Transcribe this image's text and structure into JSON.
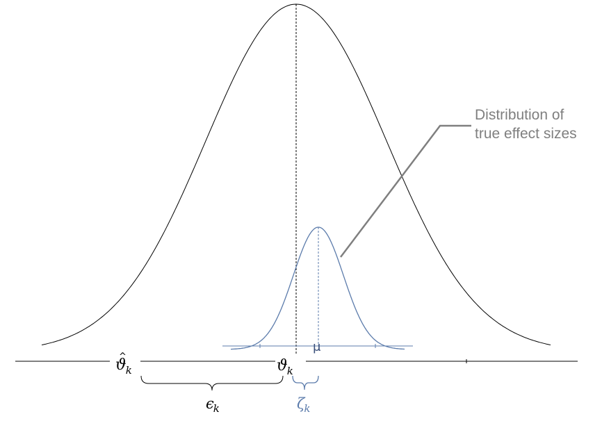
{
  "callout": {
    "line1": "Distribution of",
    "line2": "true effect sizes"
  },
  "labels": {
    "theta_hat_base": "ϑ",
    "theta_hat_sub": "k",
    "theta_base": "ϑ",
    "theta_sub": "k",
    "mu": "μ",
    "epsilon_base": "ϵ",
    "epsilon_sub": "k",
    "zeta_base": "ζ",
    "zeta_sub": "k"
  },
  "colors": {
    "outer_curve": "#000000",
    "inner_curve": "#5b7bab",
    "callout_line": "#7f7f7f",
    "callout_text": "#7f7f7f",
    "axis": "#000000"
  }
}
